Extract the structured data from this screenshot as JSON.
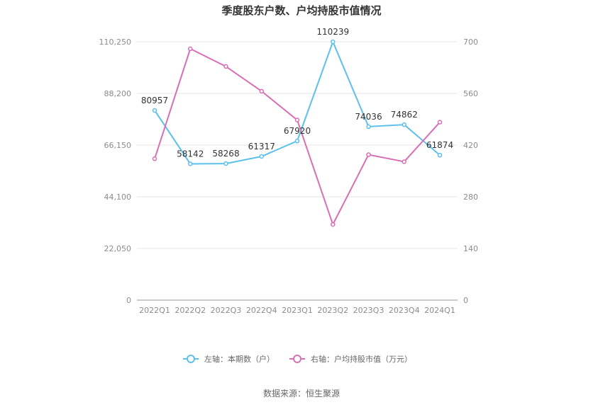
{
  "chart_data": {
    "type": "line",
    "title": "季度股东户数、户均持股市值情况",
    "categories": [
      "2022Q1",
      "2022Q2",
      "2022Q3",
      "2022Q4",
      "2023Q1",
      "2023Q2",
      "2023Q3",
      "2023Q4",
      "2024Q1"
    ],
    "series": [
      {
        "name": "左轴：本期数（户）",
        "axis": "left",
        "color": "#5bc0eb",
        "values": [
          80957,
          58142,
          58268,
          61317,
          67920,
          110239,
          74036,
          74862,
          61874
        ],
        "labels": [
          "80957",
          "58142",
          "58268",
          "61317",
          "67920",
          "110239",
          "74036",
          "74862",
          "61874"
        ]
      },
      {
        "name": "右轴：户均持股市值（万元）",
        "axis": "right",
        "color": "#d86fb4",
        "values": [
          383,
          681,
          633,
          566,
          488,
          205,
          394,
          375,
          482
        ]
      }
    ],
    "left_axis": {
      "min": 0,
      "max": 110250,
      "ticks": [
        0,
        22050,
        44100,
        66150,
        88200,
        110250
      ],
      "tick_labels": [
        "0",
        "22,050",
        "44,100",
        "66,150",
        "88,200",
        "110,250"
      ]
    },
    "right_axis": {
      "min": 0,
      "max": 700,
      "ticks": [
        0,
        140,
        280,
        420,
        560,
        700
      ],
      "tick_labels": [
        "0",
        "140",
        "280",
        "420",
        "560",
        "700"
      ]
    },
    "grid": true,
    "legend_position": "bottom"
  },
  "source": "数据来源：恒生聚源"
}
